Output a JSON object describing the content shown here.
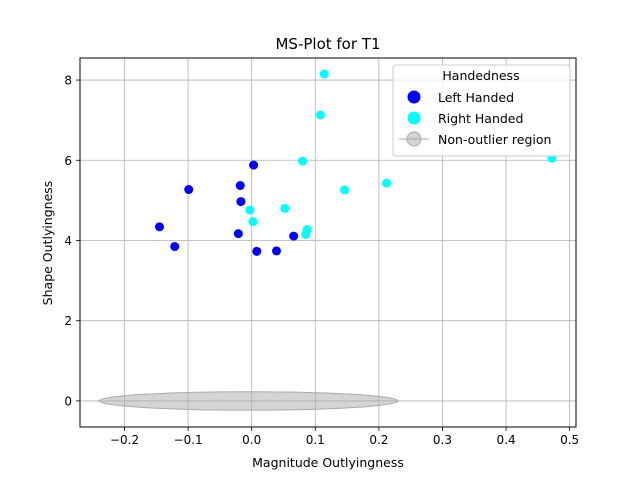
{
  "chart_data": {
    "type": "scatter",
    "title": "MS-Plot for T1",
    "xlabel": "Magnitude Outlyingness",
    "ylabel": "Shape Outlyingness",
    "xlim": [
      -0.27,
      0.51
    ],
    "ylim": [
      -0.65,
      8.55
    ],
    "xticks": [
      -0.2,
      -0.1,
      0.0,
      0.1,
      0.2,
      0.3,
      0.4,
      0.5
    ],
    "xtick_labels": [
      "−0.2",
      "−0.1",
      "0.0",
      "0.1",
      "0.2",
      "0.3",
      "0.4",
      "0.5"
    ],
    "yticks": [
      0,
      2,
      4,
      6,
      8
    ],
    "ytick_labels": [
      "0",
      "2",
      "4",
      "6",
      "8"
    ],
    "grid": true,
    "legend": {
      "title": "Handedness",
      "placement": "top-right",
      "entries": [
        "Left Handed",
        "Right Handed",
        "Non-outlier region"
      ]
    },
    "region": {
      "name": "Non-outlier region",
      "color": "#a9a9a9",
      "center": [
        -0.005,
        0.0
      ],
      "semi_axes": [
        0.235,
        0.23
      ]
    },
    "series": [
      {
        "name": "Left Handed",
        "color": "#0000ff",
        "points": [
          {
            "x": 0.003,
            "y": 5.88
          },
          {
            "x": -0.099,
            "y": 5.27
          },
          {
            "x": -0.018,
            "y": 5.37
          },
          {
            "x": -0.017,
            "y": 4.97
          },
          {
            "x": -0.145,
            "y": 4.34
          },
          {
            "x": -0.121,
            "y": 3.85
          },
          {
            "x": -0.021,
            "y": 4.17
          },
          {
            "x": 0.066,
            "y": 4.11
          },
          {
            "x": 0.008,
            "y": 3.73
          },
          {
            "x": 0.039,
            "y": 3.74
          }
        ]
      },
      {
        "name": "Right Handed",
        "color": "#00ffff",
        "points": [
          {
            "x": 0.114,
            "y": 8.15
          },
          {
            "x": 0.108,
            "y": 7.13
          },
          {
            "x": 0.08,
            "y": 5.98
          },
          {
            "x": 0.472,
            "y": 6.05
          },
          {
            "x": 0.212,
            "y": 5.43
          },
          {
            "x": 0.146,
            "y": 5.26
          },
          {
            "x": 0.052,
            "y": 4.8
          },
          {
            "x": -0.003,
            "y": 4.76
          },
          {
            "x": 0.002,
            "y": 4.47
          },
          {
            "x": 0.087,
            "y": 4.27
          },
          {
            "x": 0.085,
            "y": 4.15
          }
        ]
      }
    ]
  }
}
